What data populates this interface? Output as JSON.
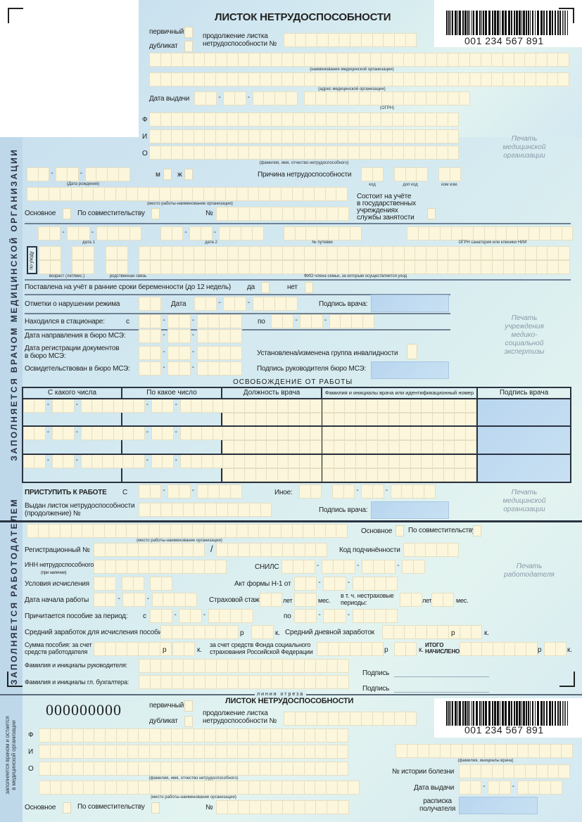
{
  "colors": {
    "cell": "#fbf6dc",
    "background": "#d3e8f1",
    "signature_box": "#bcd8f0",
    "rule": "#2a3240"
  },
  "header": {
    "title": "ЛИСТОК НЕТРУДОСПОСОБНОСТИ",
    "barcode_number": "001 234 567 891",
    "primary": "первичный",
    "duplicate": "дубликат",
    "continuation": "продолжение листка\nнетрудоспособности  №",
    "caption_med_org": "(наименование медицинской организации)",
    "caption_address": "(адрес медицинской организации)",
    "issue_date": "Дата выдачи",
    "caption_ogrn": "(ОГРН)",
    "f": "Ф",
    "i": "И",
    "o": "О",
    "caption_fio": "(фамилия, имя, отчество нетрудоспособного)",
    "stamp": "Печать\nмедицинской\nорганизации",
    "caption_dob": "(Дата рождения)",
    "m": "м",
    "zh": "ж",
    "reason": "Причина нетрудоспособности",
    "code": "код",
    "extra_code": "доп код",
    "change_code": "ком изм.",
    "caption_workplace": "(место работы-наименование организации)",
    "registered": "Состоит на учёте\nв государственных\nучреждениях\nслужбы занятости",
    "main_job": "Основное",
    "part_time": "По совместительству",
    "number": "№"
  },
  "doctor": {
    "side": "ЗАПОЛНЯЕТСЯ ВРАЧОМ МЕДИЦИНСКОЙ ОРГАНИЗАЦИИ",
    "date1": "дата 1",
    "date2": "дата 2",
    "voucher": "№ путевки",
    "ogrn_sanatorium": "ОГРН санатория или клиники НИИ",
    "care": "по уходу",
    "age": "возраст (лет/мес.)",
    "relation": "родственная связь",
    "family_fio": "ФИО члена семьи, за которым осуществляется уход",
    "pregnancy": "Поставлена на учёт в ранние сроки беременности (до 12 недель)",
    "yes": "да",
    "no": "нет",
    "violation": "Отметки о нарушении режима",
    "date": "Дата",
    "doctor_sign": "Подпись врача:",
    "hospital": "Находился в стационаре:",
    "from": "с",
    "to": "по",
    "mse_direction": "Дата направления в бюро МСЭ:",
    "mse_registration": "Дата регистрации документов\nв бюро МСЭ:",
    "disability": "Установлена/изменена группа инвалидности",
    "mse_examined": "Освидетельствован в бюро МСЭ:",
    "mse_head_sign": "Подпись руководителя бюро МСЭ:",
    "mse_stamp": "Печать\nучреждения\nмедико-\nсоциальной\nэкспертизы",
    "release_title": "ОСВОБОЖДЕНИЕ ОТ РАБОТЫ",
    "columns": [
      "С какого числа",
      "По какое число",
      "Должность врача",
      "Фамилия и инициалы врача или идентификационный номер",
      "Подпись врача"
    ],
    "return_to_work": "ПРИСТУПИТЬ К РАБОТЕ",
    "return_from": "С",
    "other": "Иное:",
    "issued_continuation": "Выдан листок нетрудоспособности\n(продолжение) №",
    "stamp": "Печать\nмедицинской\nорганизации"
  },
  "employer": {
    "side": "ЗАПОЛНЯЕТСЯ РАБОТОДАТЕЛЕМ",
    "caption_workplace": "(место работы-наименование организации)",
    "main_job": "Основное",
    "part_time": "По совместительству",
    "reg_number": "Регистрационный №",
    "slash": "/",
    "subordination": "Код подчинённости",
    "inn": "ИНН нетрудоспособного:",
    "inn_note": "(при наличии)",
    "snils": "СНИЛС",
    "conditions": "Условия исчисления",
    "act_n1": "Акт формы Н-1 от",
    "start_date": "Дата начала работы",
    "insurance": "Страховой стаж:",
    "years": "лет",
    "months": "мес.",
    "non_insurance": "в т. ч. нестраховые\nпериоды:",
    "benefit_period": "Причитается пособие за период:",
    "from": "с",
    "to": "по",
    "avg_earnings": "Средний заработок для исчисления пособия:",
    "rub": "р",
    "kop": "к.",
    "avg_daily": "Средний дневной заработок",
    "sum_employer": "Сумма пособия: за счет\nсредств работодателя",
    "sum_fund": "за счет средств Фонда социального\nстрахования Российской Федерации",
    "total": "ИТОГО\nНАЧИСЛЕНО",
    "head_name": "Фамилия и инициалы руководителя:",
    "accountant_name": "Фамилия и инициалы гл. бухгалтера:",
    "signature": "Подпись",
    "stamp": "Печать\nработодателя",
    "cut_line": "линия отреза"
  },
  "stub": {
    "side": "заполняется врачом и остается\nв медицинской организации",
    "number": "000000000",
    "title": "ЛИСТОК НЕТРУДОСПОСОБНОСТИ",
    "primary": "первичный",
    "duplicate": "дубликат",
    "continuation": "продолжение листка\nнетрудоспособности  №",
    "barcode_number": "001 234 567 891",
    "f": "Ф",
    "i": "И",
    "o": "О",
    "caption_fio": "(фамилия, имя, отчество нетрудоспособного)",
    "caption_workplace": "(место работы-наименование организации)",
    "main_job": "Основное",
    "part_time": "По совместительству",
    "number_label": "№",
    "caption_doctor": "(фамилия, инициалы врача)",
    "history": "№ истории болезни",
    "issue_date": "Дата выдачи",
    "receipt": "расписка\nполучателя"
  }
}
